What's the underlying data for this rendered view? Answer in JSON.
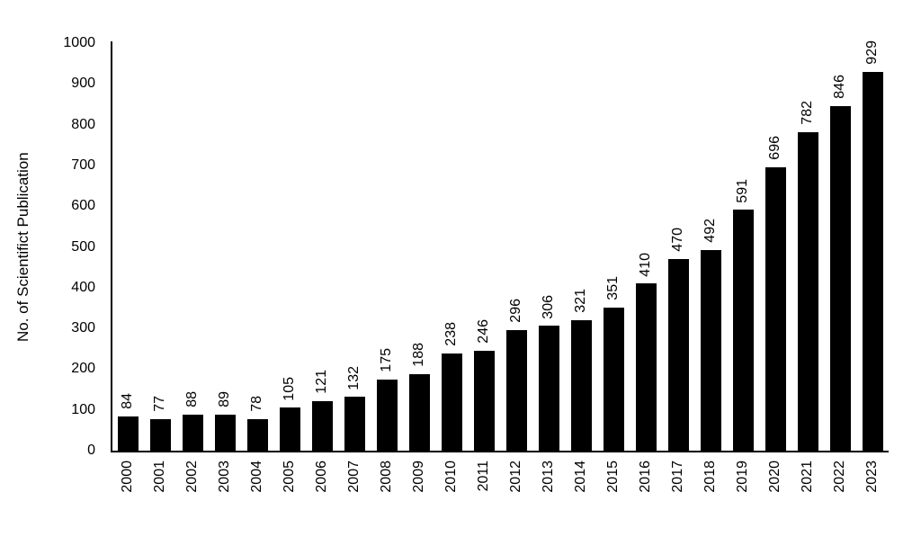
{
  "chart_data": {
    "type": "bar",
    "title": "",
    "ylabel": "No. of Scientifict Publication",
    "xlabel": "",
    "categories": [
      "2000",
      "2001",
      "2002",
      "2003",
      "2004",
      "2005",
      "2006",
      "2007",
      "2008",
      "2009",
      "2010",
      "2011",
      "2012",
      "2013",
      "2014",
      "2015",
      "2016",
      "2017",
      "2018",
      "2019",
      "2020",
      "2021",
      "2022",
      "2023"
    ],
    "values": [
      84,
      77,
      88,
      89,
      78,
      105,
      121,
      132,
      175,
      188,
      238,
      246,
      296,
      306,
      321,
      351,
      410,
      470,
      492,
      591,
      696,
      782,
      846,
      929
    ],
    "ylim": [
      0,
      1000
    ],
    "yticks": [
      0,
      100,
      200,
      300,
      400,
      500,
      600,
      700,
      800,
      900,
      1000
    ],
    "value_labels_rotated": true,
    "x_labels_rotated": true,
    "grid": false,
    "legend_position": "none",
    "bar_color": "#000000",
    "text_color": "#000000",
    "axis_color": "#000000",
    "background": "#ffffff"
  }
}
